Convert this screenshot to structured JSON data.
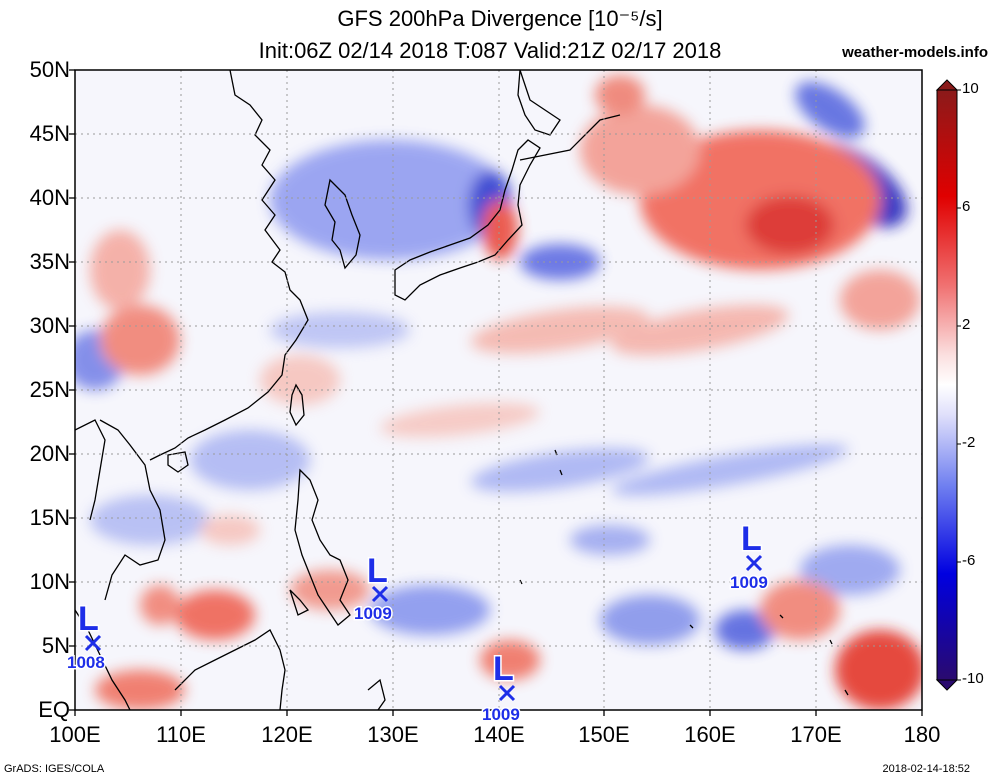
{
  "header": {
    "title": "GFS 200hPa Divergence [10⁻⁵/s]",
    "subtitle": "Init:06Z 02/14 2018 T:087 Valid:21Z 02/17 2018",
    "site": "weather-models.info"
  },
  "axes": {
    "lat_labels": [
      "50N",
      "45N",
      "40N",
      "35N",
      "30N",
      "25N",
      "20N",
      "15N",
      "10N",
      "5N",
      "EQ"
    ],
    "lon_labels": [
      "100E",
      "110E",
      "120E",
      "130E",
      "140E",
      "150E",
      "160E",
      "170E",
      "180"
    ]
  },
  "colorbar": {
    "labels": [
      "10",
      "6",
      "2",
      "-2",
      "-6",
      "-10"
    ],
    "max_color": "#8b1a1a",
    "min_color": "#2a0a6e"
  },
  "lows": [
    {
      "label": "L",
      "pressure": "1008"
    },
    {
      "label": "L",
      "pressure": "1009"
    },
    {
      "label": "L",
      "pressure": "1009"
    },
    {
      "label": "L",
      "pressure": "1009"
    }
  ],
  "colors": {
    "positive": "#e8382b",
    "strong_positive": "#c01010",
    "negative": "#3a4ce0",
    "strong_negative": "#1414b4",
    "low_marker": "#1e2ee8"
  },
  "footer": {
    "left": "GrADS: IGES/COLA",
    "right": "2018-02-14-18:52"
  }
}
